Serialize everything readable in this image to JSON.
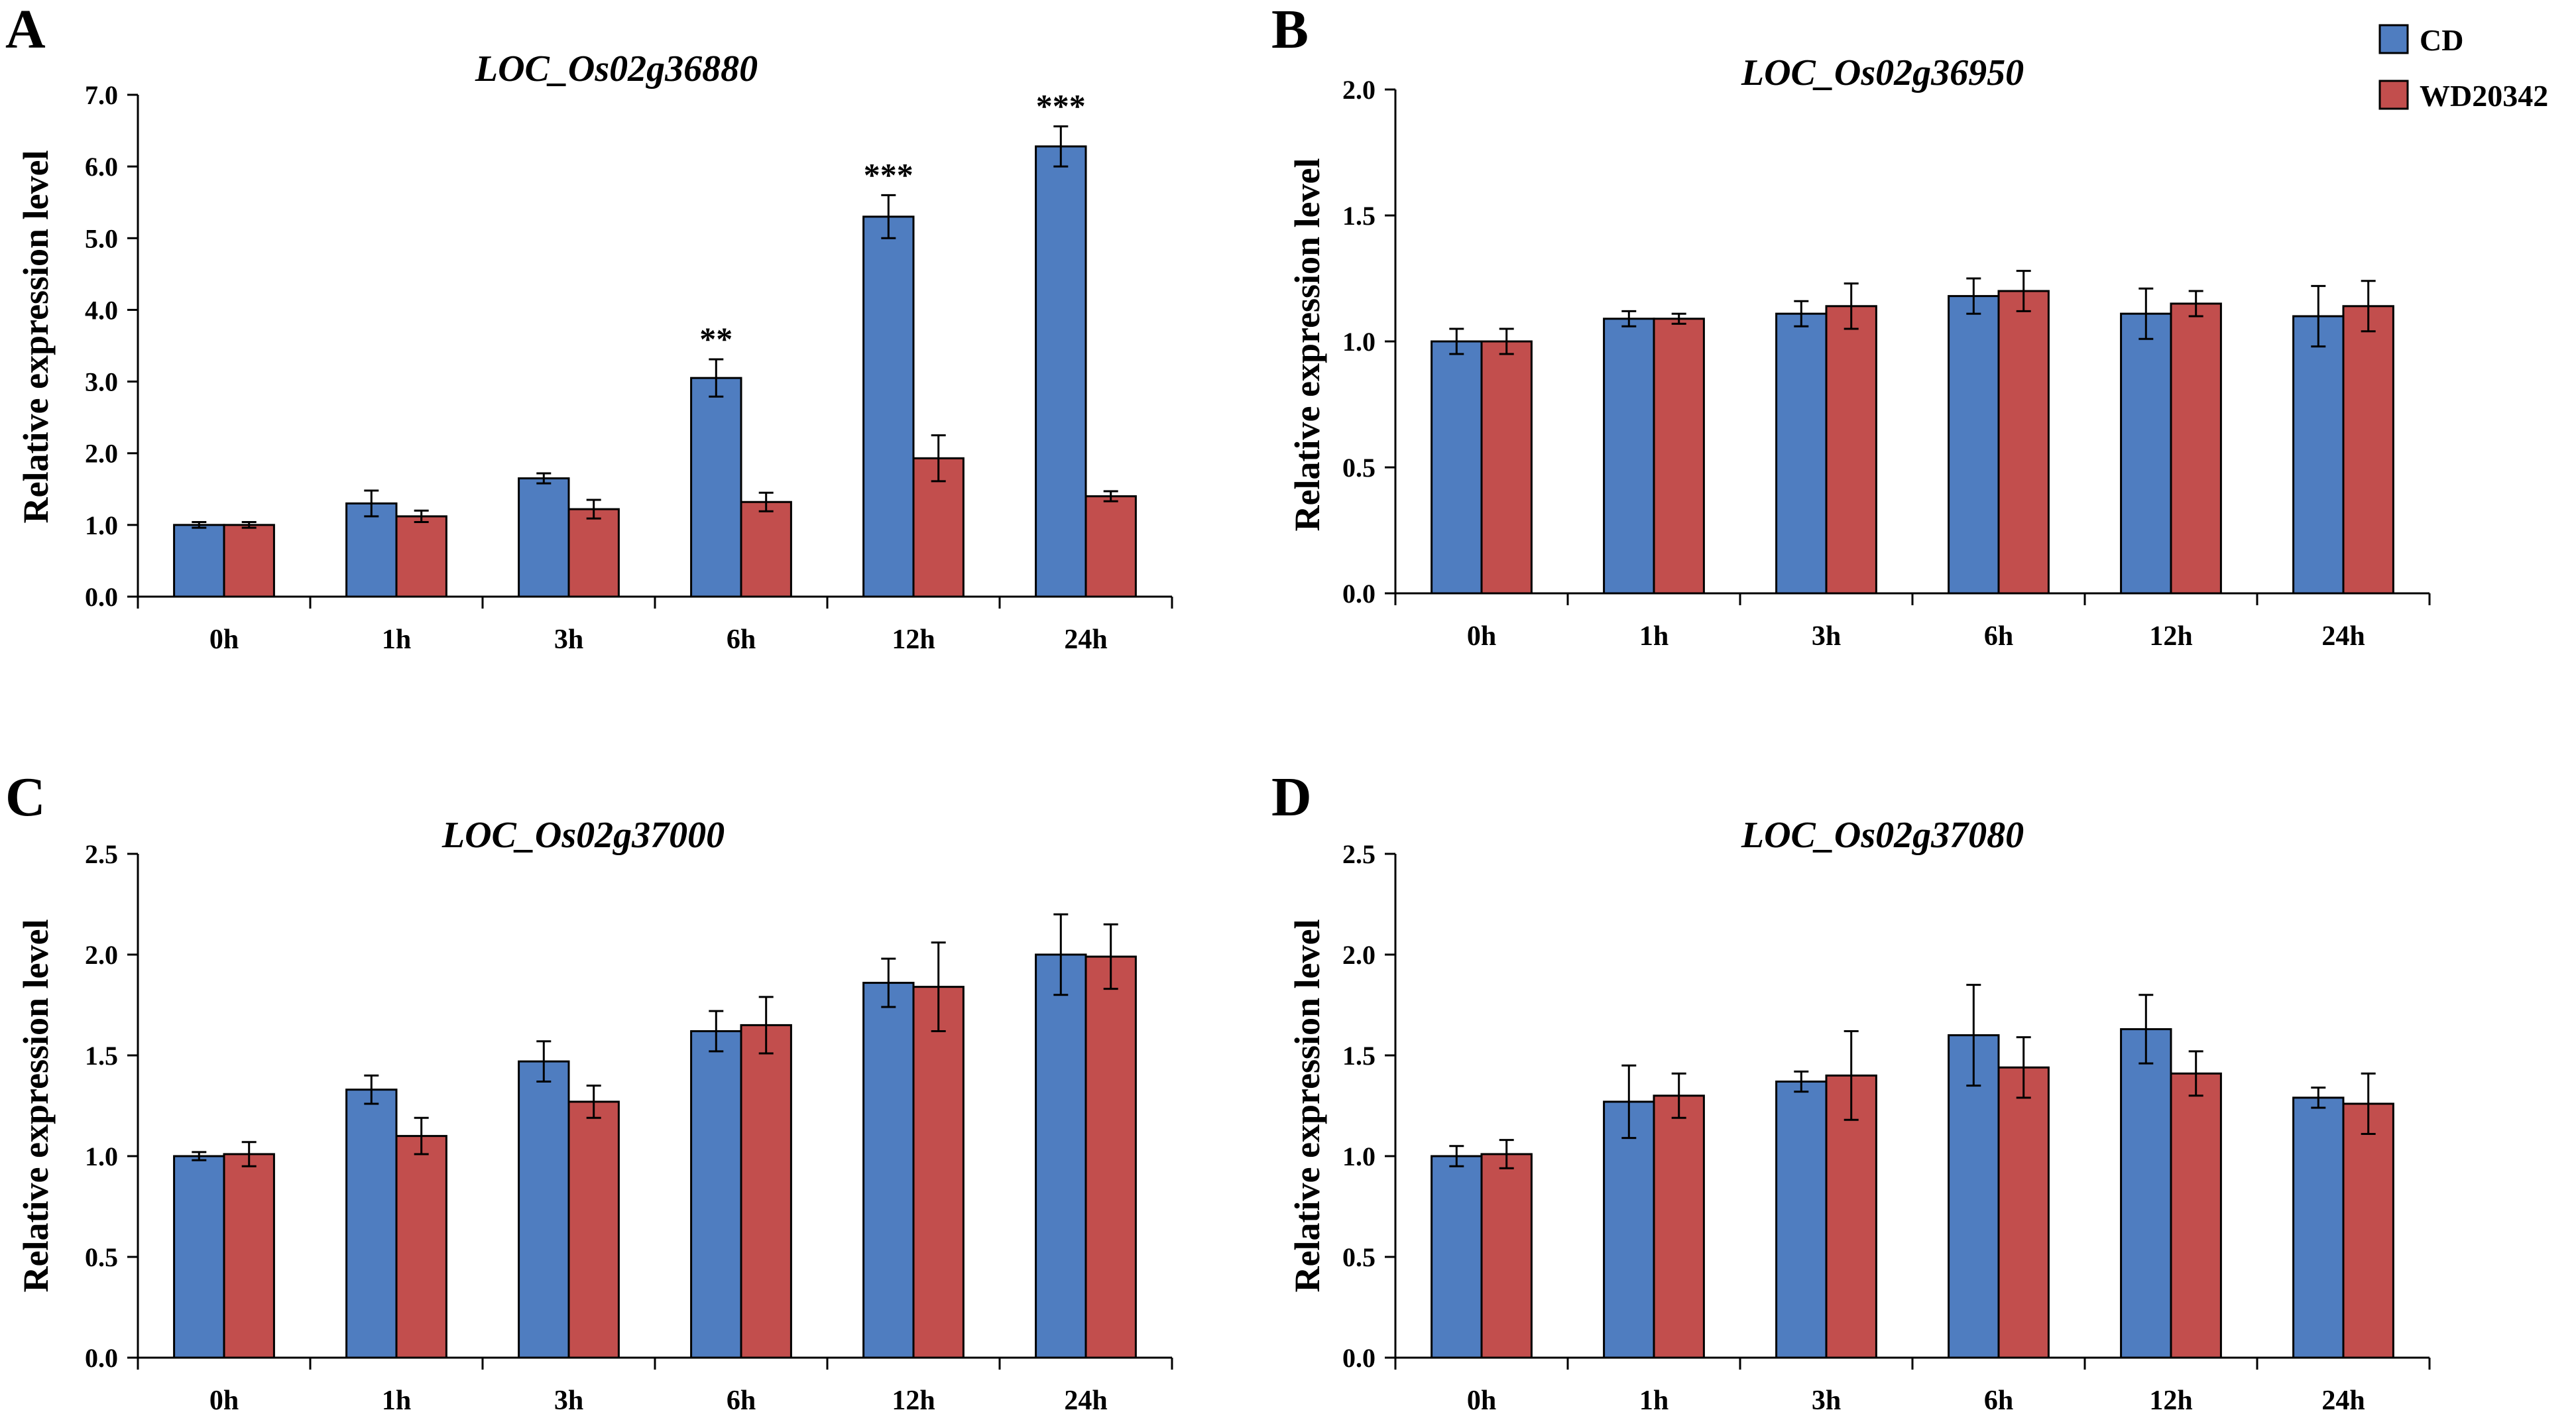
{
  "chart_data": [
    {
      "type": "bar",
      "panel": "A",
      "title": "LOC_Os02g36880",
      "xlabel": "",
      "ylabel": "Relative expression level",
      "ylim": [
        0,
        7
      ],
      "yticks": [
        "0.0",
        "1.0",
        "2.0",
        "3.0",
        "4.0",
        "5.0",
        "6.0",
        "7.0"
      ],
      "categories": [
        "0h",
        "1h",
        "3h",
        "6h",
        "12h",
        "24h"
      ],
      "series": [
        {
          "name": "CD",
          "values": [
            1.0,
            1.3,
            1.65,
            3.05,
            5.3,
            6.28
          ],
          "errors": [
            0.04,
            0.18,
            0.07,
            0.26,
            0.3,
            0.28
          ]
        },
        {
          "name": "WD20342",
          "values": [
            1.0,
            1.12,
            1.22,
            1.32,
            1.93,
            1.4
          ],
          "errors": [
            0.04,
            0.08,
            0.13,
            0.13,
            0.32,
            0.07
          ]
        }
      ],
      "annotations": [
        "",
        "",
        "",
        "**",
        "***",
        "***"
      ]
    },
    {
      "type": "bar",
      "panel": "B",
      "title": "LOC_Os02g36950",
      "xlabel": "",
      "ylabel": "Relative expression level",
      "ylim": [
        0,
        2
      ],
      "yticks": [
        "0.0",
        "0.5",
        "1.0",
        "1.5",
        "2.0"
      ],
      "categories": [
        "0h",
        "1h",
        "3h",
        "6h",
        "12h",
        "24h"
      ],
      "series": [
        {
          "name": "CD",
          "values": [
            1.0,
            1.09,
            1.11,
            1.18,
            1.11,
            1.1
          ],
          "errors": [
            0.05,
            0.03,
            0.05,
            0.07,
            0.1,
            0.12
          ]
        },
        {
          "name": "WD20342",
          "values": [
            1.0,
            1.09,
            1.14,
            1.2,
            1.15,
            1.14
          ],
          "errors": [
            0.05,
            0.02,
            0.09,
            0.08,
            0.05,
            0.1
          ]
        }
      ],
      "annotations": [
        "",
        "",
        "",
        "",
        "",
        ""
      ]
    },
    {
      "type": "bar",
      "panel": "C",
      "title": "LOC_Os02g37000",
      "xlabel": "",
      "ylabel": "Relative expression level",
      "ylim": [
        0,
        2.5
      ],
      "yticks": [
        "0.0",
        "0.5",
        "1.0",
        "1.5",
        "2.0",
        "2.5"
      ],
      "categories": [
        "0h",
        "1h",
        "3h",
        "6h",
        "12h",
        "24h"
      ],
      "series": [
        {
          "name": "CD",
          "values": [
            1.0,
            1.33,
            1.47,
            1.62,
            1.86,
            2.0
          ],
          "errors": [
            0.02,
            0.07,
            0.1,
            0.1,
            0.12,
            0.2
          ]
        },
        {
          "name": "WD20342",
          "values": [
            1.01,
            1.1,
            1.27,
            1.65,
            1.84,
            1.99
          ],
          "errors": [
            0.06,
            0.09,
            0.08,
            0.14,
            0.22,
            0.16
          ]
        }
      ],
      "annotations": [
        "",
        "",
        "",
        "",
        "",
        ""
      ]
    },
    {
      "type": "bar",
      "panel": "D",
      "title": "LOC_Os02g37080",
      "xlabel": "",
      "ylabel": "Relative expression level",
      "ylim": [
        0,
        2.5
      ],
      "yticks": [
        "0.0",
        "0.5",
        "1.0",
        "1.5",
        "2.0",
        "2.5"
      ],
      "categories": [
        "0h",
        "1h",
        "3h",
        "6h",
        "12h",
        "24h"
      ],
      "series": [
        {
          "name": "CD",
          "values": [
            1.0,
            1.27,
            1.37,
            1.6,
            1.63,
            1.29
          ],
          "errors": [
            0.05,
            0.18,
            0.05,
            0.25,
            0.17,
            0.05
          ]
        },
        {
          "name": "WD20342",
          "values": [
            1.01,
            1.3,
            1.4,
            1.44,
            1.41,
            1.26
          ],
          "errors": [
            0.07,
            0.11,
            0.22,
            0.15,
            0.11,
            0.15
          ]
        }
      ],
      "annotations": [
        "",
        "",
        "",
        "",
        "",
        ""
      ]
    }
  ],
  "legend": {
    "items": [
      {
        "label": "CD",
        "color": "#4F7DC0"
      },
      {
        "label": "WD20342",
        "color": "#C24E4D"
      }
    ]
  },
  "colors": {
    "stroke": "#000000",
    "cd": "#4F7DC0",
    "wd": "#C24E4D"
  }
}
